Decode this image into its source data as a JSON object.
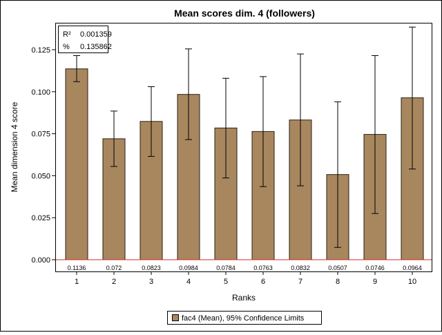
{
  "chart_data": {
    "type": "bar",
    "title": "Mean scores dim. 4 (followers)",
    "xlabel": "Ranks",
    "ylabel": "Mean dimension 4 score",
    "categories": [
      "1",
      "2",
      "3",
      "4",
      "5",
      "6",
      "7",
      "8",
      "9",
      "10"
    ],
    "series": [
      {
        "name": "fac4 (Mean), 95% Confidence Limits",
        "values": [
          0.1136,
          0.072,
          0.0823,
          0.0984,
          0.0784,
          0.0763,
          0.0832,
          0.0507,
          0.0746,
          0.0964
        ],
        "lower": [
          0.106,
          0.0555,
          0.0615,
          0.0715,
          0.0487,
          0.0435,
          0.044,
          0.0073,
          0.0275,
          0.054
        ],
        "upper": [
          0.1215,
          0.0885,
          0.103,
          0.1255,
          0.108,
          0.109,
          0.1225,
          0.094,
          0.1215,
          0.1385
        ]
      }
    ],
    "data_labels": [
      "0.1136",
      "0.072",
      "0.0823",
      "0.0984",
      "0.0784",
      "0.0763",
      "0.0832",
      "0.0507",
      "0.0746",
      "0.0964"
    ],
    "yticks": [
      "0.000",
      "0.025",
      "0.050",
      "0.075",
      "0.100",
      "0.125"
    ],
    "ylim": [
      0,
      0.1385
    ],
    "reference_line": 0,
    "grid": false,
    "legend_position": "bottom",
    "stats": [
      {
        "label": "R²",
        "value": "0.001359"
      },
      {
        "label": "%",
        "value": "0.135862"
      }
    ],
    "colors": {
      "bar_fill": "#a8875f",
      "bar_stroke": "#2a1f10",
      "reference_line": "#d62728",
      "error_bar": "#000000"
    }
  }
}
